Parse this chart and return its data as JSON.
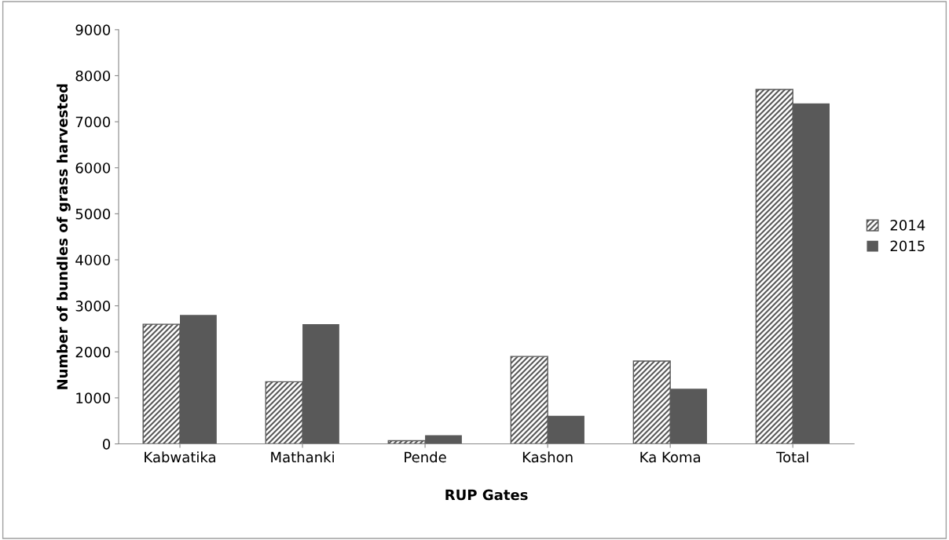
{
  "chart_data": {
    "type": "bar",
    "xlabel": "RUP Gates",
    "ylabel": "Number of bundles of grass harvested",
    "categories": [
      "Kabwatika",
      "Mathanki",
      "Pende",
      "Kashon",
      "Ka Koma",
      "Total"
    ],
    "series": [
      {
        "name": "2014",
        "color": "#595959",
        "values": [
          2600,
          1350,
          70,
          1900,
          1800,
          7700
        ]
      },
      {
        "name": "2015",
        "color": "#595959",
        "values": [
          2800,
          2600,
          190,
          610,
          1200,
          7400
        ]
      }
    ],
    "ylim": [
      0,
      9000
    ],
    "yticks": [
      0,
      1000,
      2000,
      3000,
      4000,
      5000,
      6000,
      7000,
      8000,
      9000
    ],
    "grid": false,
    "legend": "right"
  }
}
